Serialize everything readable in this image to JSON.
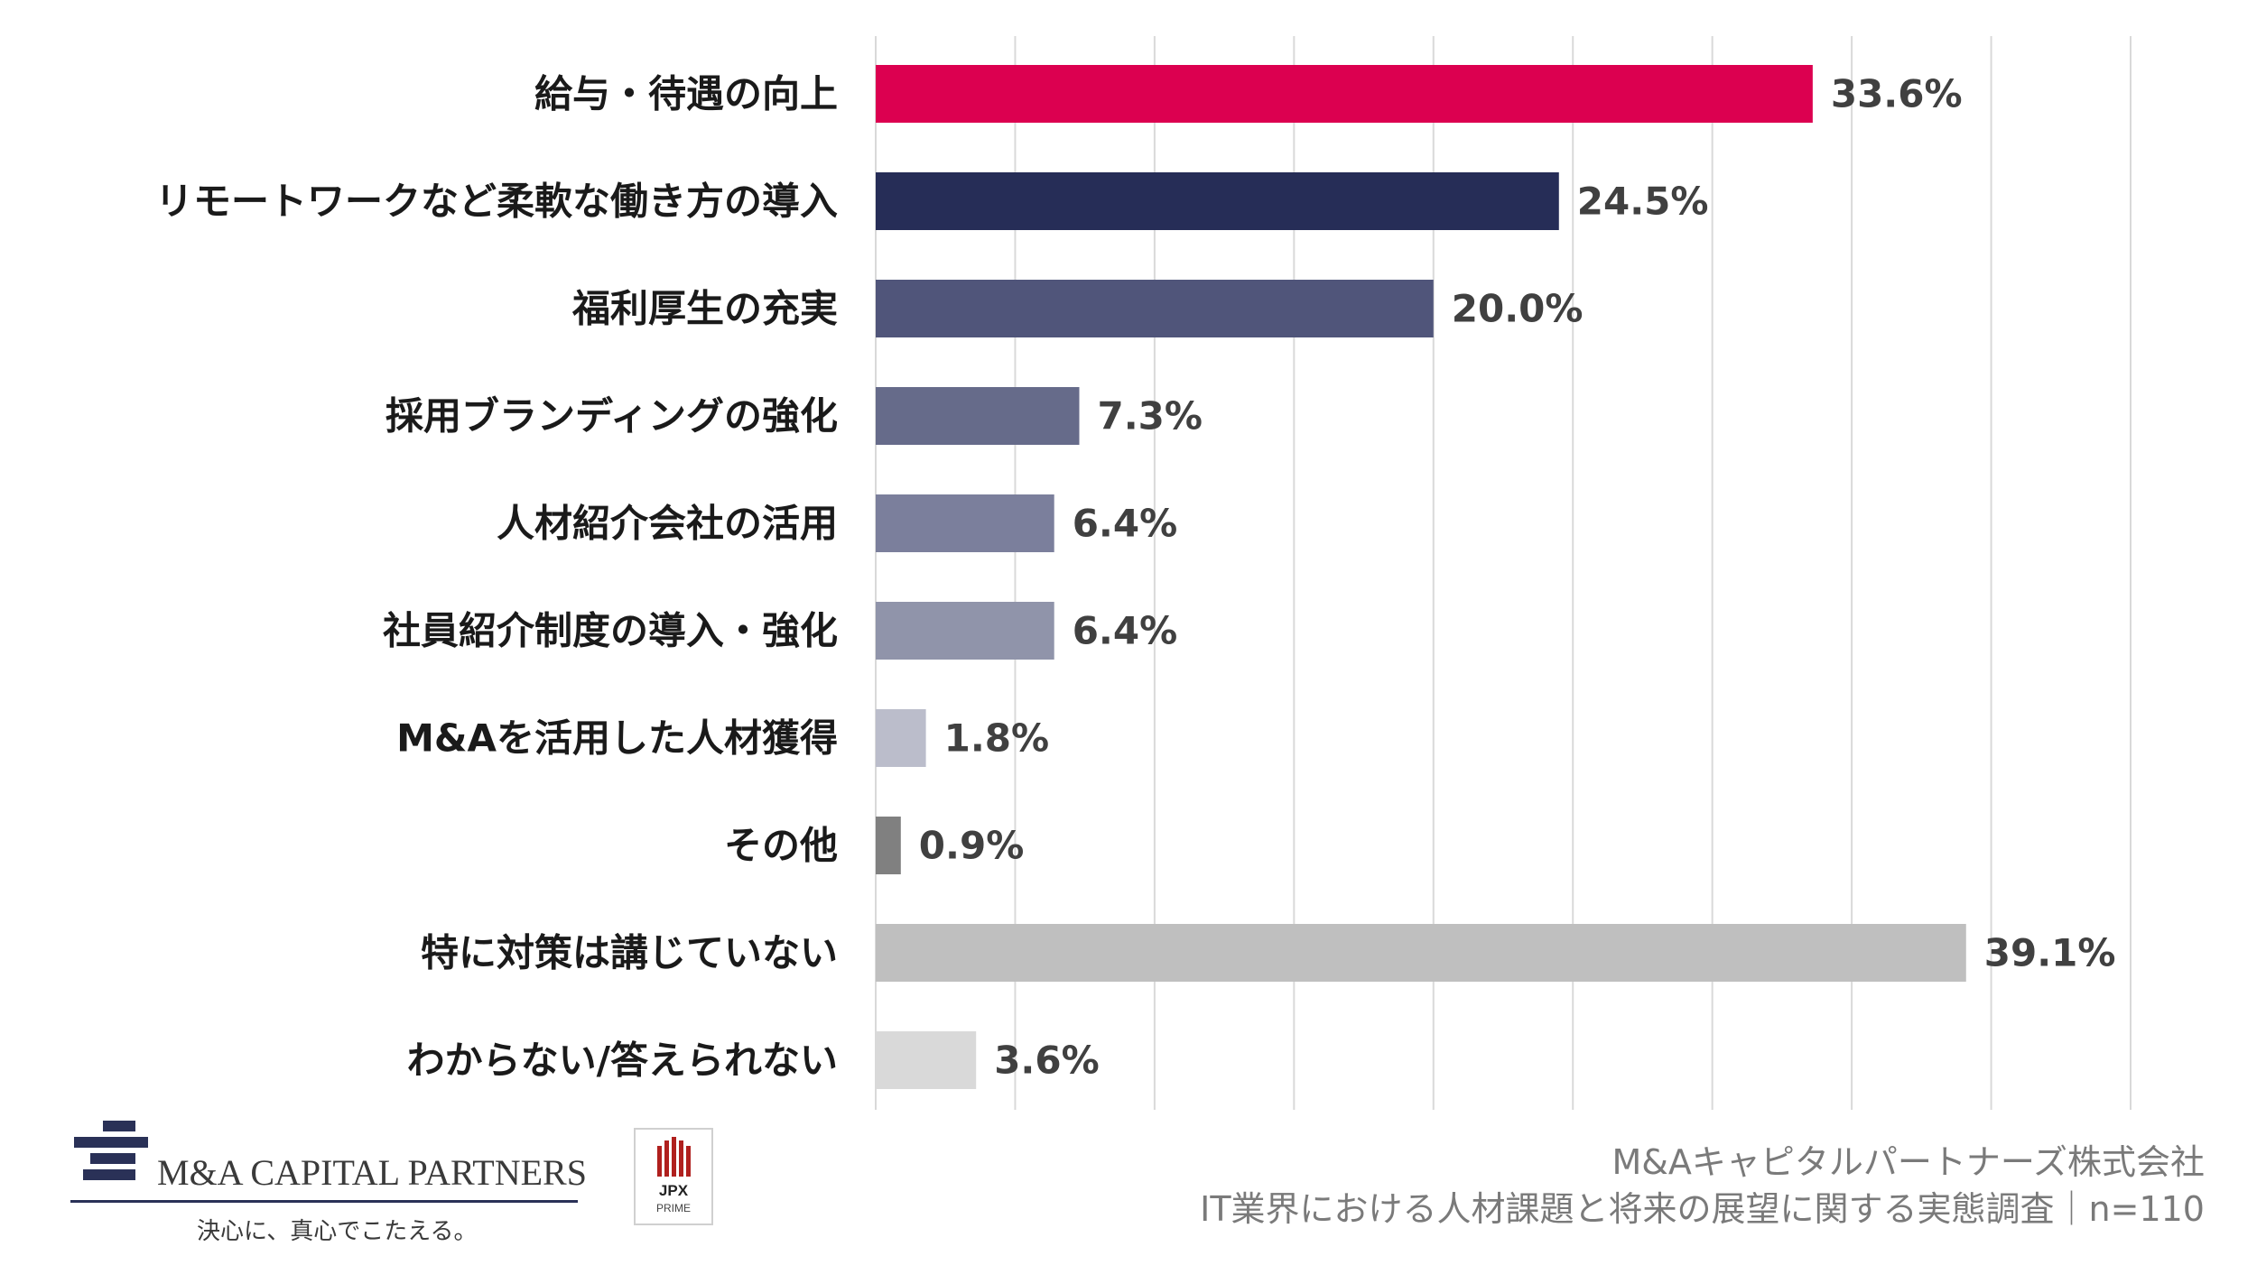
{
  "chart_data": {
    "type": "bar",
    "orientation": "horizontal",
    "categories": [
      "給与・待遇の向上",
      "リモートワークなど柔軟な働き方の導入",
      "福利厚生の充実",
      "採用ブランディングの強化",
      "人材紹介会社の活用",
      "社員紹介制度の導入・強化",
      "M&Aを活用した人材獲得",
      "その他",
      "特に対策は講じていない",
      "わからない/答えられない"
    ],
    "values": [
      33.6,
      24.5,
      20.0,
      7.3,
      6.4,
      6.4,
      1.8,
      0.9,
      39.1,
      3.6
    ],
    "value_labels": [
      "33.6%",
      "24.5%",
      "20.0%",
      "7.3%",
      "6.4%",
      "6.4%",
      "1.8%",
      "0.9%",
      "39.1%",
      "3.6%"
    ],
    "colors": [
      "#dc0050",
      "#262d57",
      "#50557a",
      "#666b8a",
      "#7b7f9c",
      "#9094aa",
      "#bbbdcb",
      "#808080",
      "#bfbfbf",
      "#d9d9d9"
    ],
    "xlim": [
      0,
      45
    ],
    "grid": true,
    "grid_step": 5,
    "legend": false,
    "title": "",
    "xlabel": "",
    "ylabel": ""
  },
  "logo": {
    "name": "M&A CAPITAL PARTNERS",
    "tagline": "決心に、真心でこたえる。",
    "brand_color": "#2a3157"
  },
  "jpx": {
    "label": "JPX",
    "sub": "PRIME",
    "color": "#b0201e"
  },
  "source": {
    "line1": "M&Aキャピタルパートナーズ株式会社",
    "line2": "IT業界における人材課題と将来の展望に関する実態調査｜n=110"
  }
}
